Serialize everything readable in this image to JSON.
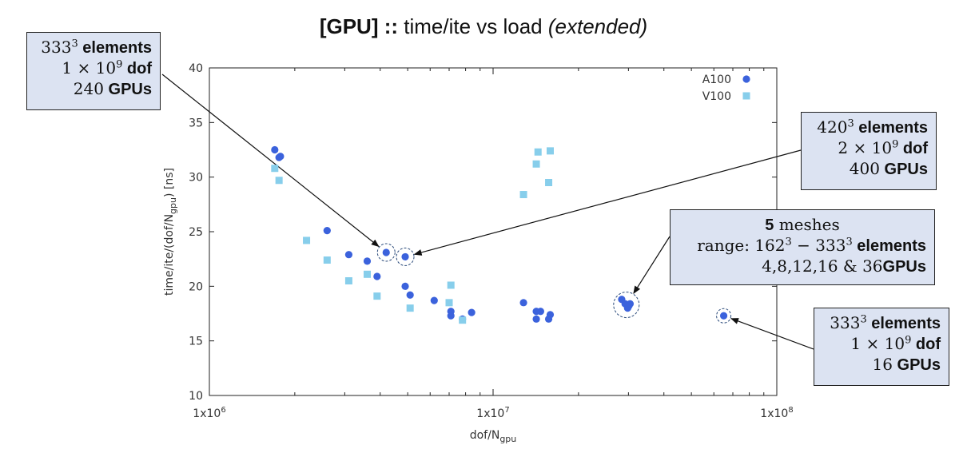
{
  "title": {
    "bold": "[GPU] ::",
    "normal": " time/ite vs load ",
    "italic": "(extended)"
  },
  "chart_data": {
    "type": "scatter",
    "xlabel": "dof/N",
    "xlabel_sub": "gpu",
    "ylabel": "time/ite/(dof/N",
    "ylabel_sub": "gpu",
    "ylabel_tail": ") [ns]",
    "xscale": "log",
    "xlim": [
      1000000,
      100000000
    ],
    "ylim": [
      10,
      40
    ],
    "x_ticks": [
      {
        "value": 1000000,
        "label": "1x10"
      },
      {
        "value": 10000000,
        "label": "1x10"
      },
      {
        "value": 100000000,
        "label": "1x10"
      }
    ],
    "x_tick_exps": [
      "6",
      "7",
      "8"
    ],
    "y_ticks": [
      10,
      15,
      20,
      25,
      30,
      35,
      40
    ],
    "grid": false,
    "legend_position": "top-right",
    "series": [
      {
        "name": "A100",
        "color": "#3b62dc",
        "marker": "circle",
        "points": [
          [
            1700000,
            32.5
          ],
          [
            1760000,
            31.8
          ],
          [
            1780000,
            31.9
          ],
          [
            2600000,
            25.1
          ],
          [
            3100000,
            22.9
          ],
          [
            3600000,
            22.3
          ],
          [
            3900000,
            20.9
          ],
          [
            4200000,
            23.1
          ],
          [
            4900000,
            22.7
          ],
          [
            4900000,
            20.0
          ],
          [
            5100000,
            19.2
          ],
          [
            6200000,
            18.7
          ],
          [
            7100000,
            17.7
          ],
          [
            7100000,
            17.3
          ],
          [
            7800000,
            17.0
          ],
          [
            8400000,
            17.6
          ],
          [
            12800000,
            18.5
          ],
          [
            14200000,
            17.7
          ],
          [
            14200000,
            17.0
          ],
          [
            14700000,
            17.7
          ],
          [
            15700000,
            17.0
          ],
          [
            15900000,
            17.4
          ],
          [
            28400000,
            18.8
          ],
          [
            29200000,
            18.4
          ],
          [
            29800000,
            18.0
          ],
          [
            30100000,
            18.2
          ],
          [
            30400000,
            18.4
          ],
          [
            65000000,
            17.3
          ]
        ]
      },
      {
        "name": "V100",
        "color": "#87ceeb",
        "marker": "square",
        "points": [
          [
            1700000,
            30.8
          ],
          [
            1760000,
            29.7
          ],
          [
            2200000,
            24.2
          ],
          [
            2600000,
            22.4
          ],
          [
            3100000,
            20.5
          ],
          [
            3600000,
            21.1
          ],
          [
            3900000,
            19.1
          ],
          [
            5100000,
            18.0
          ],
          [
            7000000,
            18.5
          ],
          [
            7100000,
            20.1
          ],
          [
            7800000,
            16.9
          ],
          [
            12800000,
            28.4
          ],
          [
            14200000,
            31.2
          ],
          [
            14400000,
            32.3
          ],
          [
            15700000,
            29.5
          ],
          [
            15900000,
            32.4
          ]
        ]
      }
    ],
    "annotations": [
      {
        "id": "a1",
        "lines": [
          {
            "math": "333",
            "sup": "3",
            "bold": " elements"
          },
          {
            "math": "1 × 10",
            "sup": "9",
            "bold": " dof"
          },
          {
            "math": "240",
            "sup": "",
            "bold": " GPUs"
          }
        ],
        "target": [
          4200000,
          23.1
        ]
      },
      {
        "id": "a2",
        "lines": [
          {
            "math": "420",
            "sup": "3",
            "bold": " elements"
          },
          {
            "math": "2 × 10",
            "sup": "9",
            "bold": " dof"
          },
          {
            "math": "400",
            "sup": "",
            "bold": " GPUs"
          }
        ],
        "target": [
          4900000,
          22.7
        ]
      },
      {
        "id": "a3",
        "lines": [
          {
            "pre_bold": "5",
            "math": " meshes",
            "sup": "",
            "bold": ""
          },
          {
            "math": "range: 162",
            "sup": "3",
            "math2": " − 333",
            "sup2": "3",
            "bold": " elements"
          },
          {
            "math": "4,8,12,16 & 36",
            "sup": "",
            "bold": "GPUs"
          }
        ],
        "target": [
          29500000,
          18.3
        ]
      },
      {
        "id": "a4",
        "lines": [
          {
            "math": "333",
            "sup": "3",
            "bold": " elements"
          },
          {
            "math": "1 × 10",
            "sup": "9",
            "bold": " dof"
          },
          {
            "math": "16",
            "sup": "",
            "bold": " GPUs"
          }
        ],
        "target": [
          65000000,
          17.3
        ]
      }
    ]
  }
}
